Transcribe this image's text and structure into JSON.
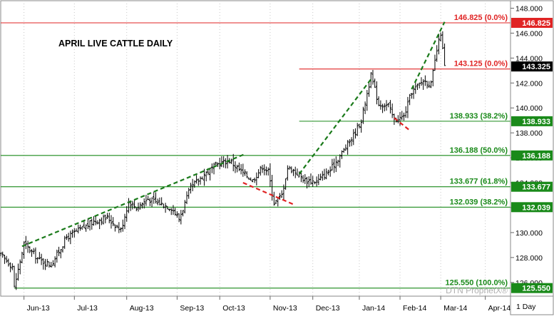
{
  "chart_data": {
    "type": "ohlc",
    "title": "APRIL LIVE CATTLE DAILY",
    "watermark": "DTN ProphetX®",
    "timeframe_label": "1 Day",
    "last_price": "143.325",
    "ylim": [
      124.9,
      148.6
    ],
    "y_ticks": [
      "126.000",
      "128.000",
      "130.000",
      "132.000",
      "134.000",
      "136.000",
      "138.000",
      "140.000",
      "142.000",
      "144.000",
      "146.000",
      "148.000"
    ],
    "x_months": [
      {
        "label": "Jun-13",
        "day": 12
      },
      {
        "label": "Jul-13",
        "day": 38
      },
      {
        "label": "Aug-13",
        "day": 65
      },
      {
        "label": "Sep-13",
        "day": 91
      },
      {
        "label": "Oct-13",
        "day": 113
      },
      {
        "label": "Nov-13",
        "day": 139
      },
      {
        "label": "Dec-13",
        "day": 161
      },
      {
        "label": "Jan-14",
        "day": 185
      },
      {
        "label": "Feb-14",
        "day": 206
      },
      {
        "label": "Mar-14",
        "day": 227
      },
      {
        "label": "Apr-14",
        "day": 250
      }
    ],
    "x_range": [
      0,
      263
    ],
    "price_key_points": [
      [
        0,
        128.2
      ],
      [
        6,
        127.3
      ],
      [
        7,
        125.6
      ],
      [
        12,
        129.1
      ],
      [
        20,
        127.8
      ],
      [
        26,
        127.4
      ],
      [
        34,
        129.6
      ],
      [
        48,
        130.9
      ],
      [
        55,
        131.2
      ],
      [
        62,
        130.2
      ],
      [
        66,
        132.5
      ],
      [
        70,
        132.0
      ],
      [
        76,
        132.7
      ],
      [
        88,
        132.0
      ],
      [
        92,
        131.1
      ],
      [
        98,
        133.6
      ],
      [
        106,
        134.8
      ],
      [
        112,
        135.5
      ],
      [
        118,
        135.8
      ],
      [
        124,
        134.9
      ],
      [
        130,
        134.2
      ],
      [
        135,
        135.3
      ],
      [
        138,
        134.9
      ],
      [
        141,
        132.4
      ],
      [
        145,
        133.0
      ],
      [
        148,
        135.2
      ],
      [
        151,
        135.0
      ],
      [
        157,
        134.2
      ],
      [
        163,
        134.1
      ],
      [
        170,
        135.0
      ],
      [
        176,
        136.4
      ],
      [
        182,
        137.8
      ],
      [
        186,
        139.0
      ],
      [
        191,
        142.6
      ],
      [
        195,
        140.3
      ],
      [
        200,
        140.2
      ],
      [
        203,
        139.0
      ],
      [
        208,
        139.3
      ],
      [
        212,
        141.3
      ],
      [
        218,
        142.2
      ],
      [
        222,
        141.9
      ],
      [
        225,
        144.6
      ],
      [
        227,
        146.0
      ],
      [
        229,
        143.3
      ]
    ],
    "horizontal_levels": [
      {
        "value": 146.825,
        "label": "146.825 (0.0%)",
        "badge": "146.825",
        "color": "#e02424",
        "start_day": 0
      },
      {
        "value": 143.125,
        "label": "143.125 (0.0%)",
        "badge": "",
        "color": "#e02424",
        "start_day": 154
      },
      {
        "value": 138.933,
        "label": "138.933 (38.2%)",
        "badge": "138.933",
        "color": "#1a8a1a",
        "start_day": 154
      },
      {
        "value": 136.188,
        "label": "136.188 (50.0%)",
        "badge": "136.188",
        "color": "#1a8a1a",
        "start_day": 0
      },
      {
        "value": 133.677,
        "label": "133.677 (61.8%)",
        "badge": "133.677",
        "color": "#1a8a1a",
        "start_day": 0
      },
      {
        "value": 132.039,
        "label": "132.039 (38.2%)",
        "badge": "132.039",
        "color": "#1a8a1a",
        "start_day": 0
      },
      {
        "value": 125.55,
        "label": "125.550 (100.0%)",
        "badge": "125.550",
        "color": "#1a8a1a",
        "start_day": 7
      }
    ],
    "trendlines": [
      {
        "color": "#1a7a1a",
        "points": [
          [
            11,
            128.9
          ],
          [
            126,
            136.3
          ]
        ]
      },
      {
        "color": "#1a7a1a",
        "points": [
          [
            154,
            134.7
          ],
          [
            191,
            142.3
          ]
        ]
      },
      {
        "color": "#1a7a1a",
        "points": [
          [
            212,
            141.5
          ],
          [
            229,
            146.9
          ]
        ]
      },
      {
        "color": "#e02424",
        "points": [
          [
            125,
            134.0
          ],
          [
            152,
            132.2
          ]
        ]
      },
      {
        "color": "#e02424",
        "points": [
          [
            203,
            139.2
          ],
          [
            211,
            138.2
          ]
        ]
      }
    ]
  }
}
